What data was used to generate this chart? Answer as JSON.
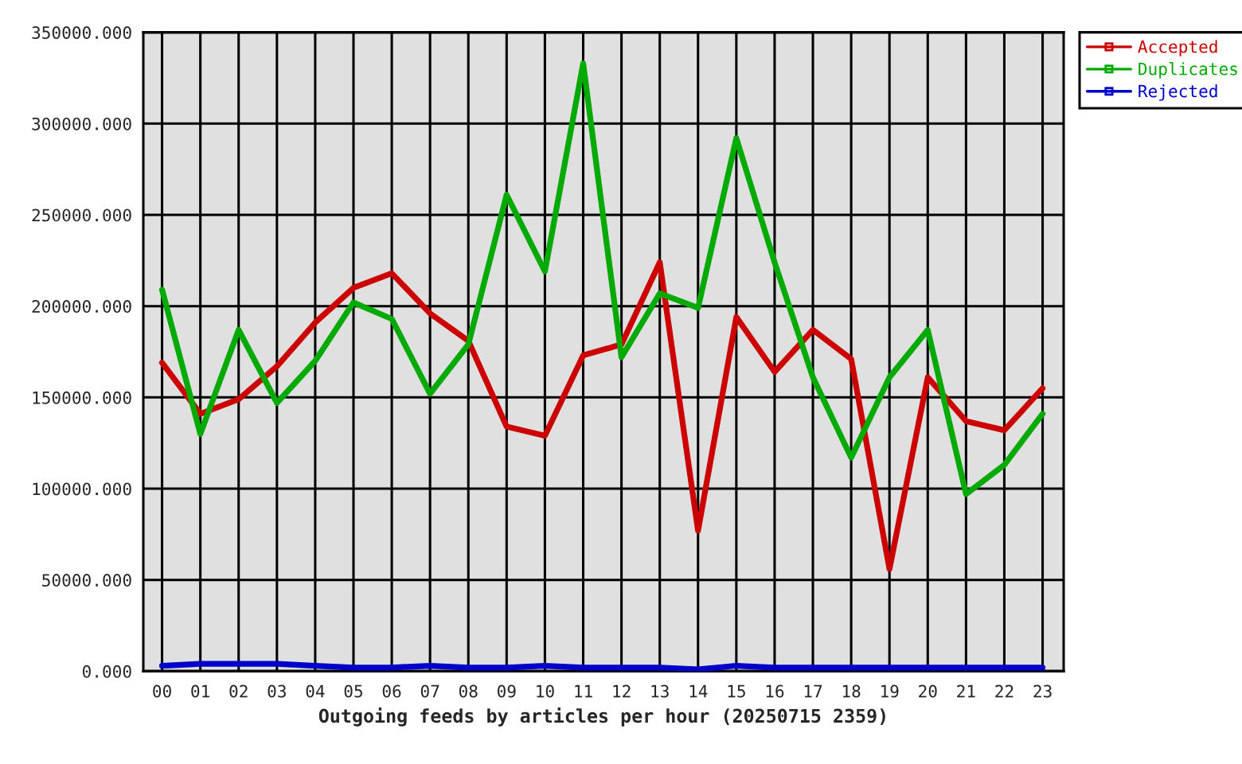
{
  "chart_data": {
    "type": "line",
    "xlabel": "Outgoing feeds by articles per hour (20250715 2359)",
    "categories": [
      "00",
      "01",
      "02",
      "03",
      "04",
      "05",
      "06",
      "07",
      "08",
      "09",
      "10",
      "11",
      "12",
      "13",
      "14",
      "15",
      "16",
      "17",
      "18",
      "19",
      "20",
      "21",
      "22",
      "23"
    ],
    "series": [
      {
        "name": "Accepted",
        "color": "#cc0000",
        "values": [
          169000,
          141000,
          149000,
          167000,
          191000,
          210000,
          218000,
          196000,
          181000,
          134000,
          129000,
          173000,
          179000,
          224000,
          77000,
          194000,
          164000,
          187000,
          171000,
          56000,
          161000,
          137000,
          132000,
          155000
        ]
      },
      {
        "name": "Duplicates",
        "color": "#00aa00",
        "values": [
          209000,
          130000,
          187000,
          147000,
          170000,
          202000,
          193000,
          152000,
          179000,
          261000,
          219000,
          333000,
          172000,
          207000,
          199000,
          292000,
          224000,
          161000,
          117000,
          161000,
          187000,
          97000,
          113000,
          141000
        ]
      },
      {
        "name": "Rejected",
        "color": "#0000cc",
        "values": [
          3000,
          4000,
          4000,
          4000,
          3000,
          2000,
          2000,
          3000,
          2000,
          2000,
          3000,
          2000,
          2000,
          2000,
          1000,
          3000,
          2000,
          2000,
          2000,
          2000,
          2000,
          2000,
          2000,
          2000
        ]
      }
    ],
    "ylim": [
      0,
      350000
    ],
    "yticks": [
      {
        "value": 0,
        "label": "0.000"
      },
      {
        "value": 50000,
        "label": "50000.000"
      },
      {
        "value": 100000,
        "label": "100000.000"
      },
      {
        "value": 150000,
        "label": "150000.000"
      },
      {
        "value": 200000,
        "label": "200000.000"
      },
      {
        "value": 250000,
        "label": "250000.000"
      },
      {
        "value": 300000,
        "label": "300000.000"
      },
      {
        "value": 350000,
        "label": "350000.000"
      }
    ],
    "grid": true,
    "legend": "top right"
  }
}
